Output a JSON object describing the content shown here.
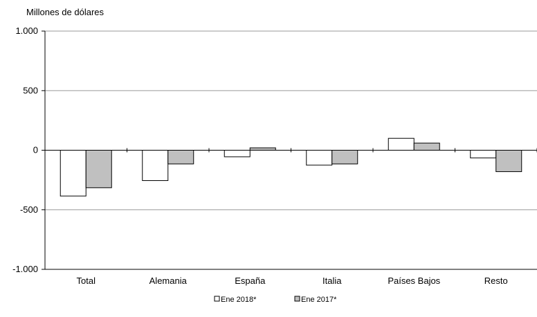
{
  "chart_data": {
    "type": "bar",
    "title": "",
    "ylabel": "Millones de dólares",
    "xlabel": "",
    "ylim": [
      -1000,
      1000
    ],
    "yticks": [
      1000,
      500,
      0,
      -500,
      -1000
    ],
    "ytick_labels": [
      "1.000",
      "500",
      "0",
      "-500",
      "-1.000"
    ],
    "grid": true,
    "legend_position": "bottom",
    "categories": [
      "Total",
      "Alemania",
      "España",
      "Italia",
      "Países Bajos",
      "Resto"
    ],
    "series": [
      {
        "name": "Ene 2018*",
        "color": "#ffffff",
        "values": [
          -385,
          -255,
          -55,
          -125,
          100,
          -65
        ]
      },
      {
        "name": "Ene 2017*",
        "color": "#c0c0c0",
        "values": [
          -315,
          -115,
          20,
          -115,
          60,
          -180
        ]
      }
    ]
  }
}
